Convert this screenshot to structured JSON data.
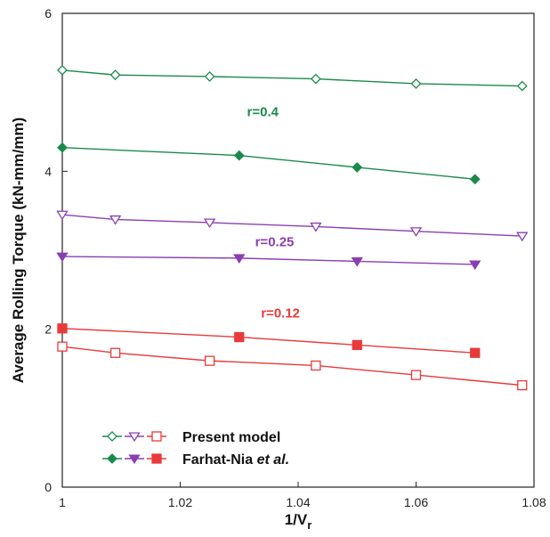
{
  "chart_data": {
    "type": "line",
    "xlabel": "1/V",
    "xlabel_sub": "r",
    "ylabel": "Average Rolling Torque (kN-mm/mm)",
    "xlim": [
      1.0,
      1.08
    ],
    "ylim": [
      0,
      6
    ],
    "xticks": [
      "1",
      "1.02",
      "1.04",
      "1.06",
      "1.08"
    ],
    "yticks": [
      "0",
      "2",
      "4",
      "6"
    ],
    "grid": false,
    "colors": {
      "r04": "#1a8a4a",
      "r025": "#8a3fb0",
      "r012": "#e83a3a"
    },
    "annotations": [
      {
        "text": "r=0.4",
        "color_key": "r04",
        "x": 1.034,
        "y": 4.7
      },
      {
        "text": "r=0.25",
        "color_key": "r025",
        "x": 1.036,
        "y": 3.05
      },
      {
        "text": "r=0.12",
        "color_key": "r012",
        "x": 1.037,
        "y": 2.15
      }
    ],
    "series": [
      {
        "group": "Present model",
        "r": "0.4",
        "color_key": "r04",
        "marker": "diamond-open",
        "x": [
          1.0,
          1.009,
          1.025,
          1.043,
          1.06,
          1.078
        ],
        "values": [
          5.28,
          5.22,
          5.2,
          5.17,
          5.11,
          5.08
        ]
      },
      {
        "group": "Farhat-Nia et al.",
        "r": "0.4",
        "color_key": "r04",
        "marker": "diamond-filled",
        "x": [
          1.0,
          1.03,
          1.05,
          1.07
        ],
        "values": [
          4.3,
          4.2,
          4.05,
          3.9
        ]
      },
      {
        "group": "Present model",
        "r": "0.25",
        "color_key": "r025",
        "marker": "triangle-down-open",
        "x": [
          1.0,
          1.009,
          1.025,
          1.043,
          1.06,
          1.078
        ],
        "values": [
          3.45,
          3.39,
          3.35,
          3.3,
          3.24,
          3.18
        ]
      },
      {
        "group": "Farhat-Nia et al.",
        "r": "0.25",
        "color_key": "r025",
        "marker": "triangle-down-filled",
        "x": [
          1.0,
          1.03,
          1.05,
          1.07
        ],
        "values": [
          2.92,
          2.9,
          2.86,
          2.82
        ]
      },
      {
        "group": "Present model",
        "r": "0.12",
        "color_key": "r012",
        "marker": "square-open",
        "x": [
          1.0,
          1.009,
          1.025,
          1.043,
          1.06,
          1.078
        ],
        "values": [
          1.78,
          1.7,
          1.6,
          1.54,
          1.42,
          1.29
        ]
      },
      {
        "group": "Farhat-Nia et al.",
        "r": "0.12",
        "color_key": "r012",
        "marker": "square-filled",
        "x": [
          1.0,
          1.03,
          1.05,
          1.07
        ],
        "values": [
          2.01,
          1.9,
          1.8,
          1.7
        ]
      }
    ],
    "legend": {
      "placement": "bottom-left",
      "entries": [
        {
          "label": "Present model",
          "markers": [
            "diamond-open",
            "triangle-down-open",
            "square-open"
          ]
        },
        {
          "label_main": "Farhat-Nia ",
          "label_italic": "et al.",
          "markers": [
            "diamond-filled",
            "triangle-down-filled",
            "square-filled"
          ]
        }
      ]
    }
  }
}
